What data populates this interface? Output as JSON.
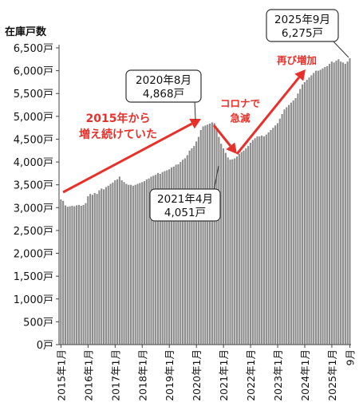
{
  "chart_data": {
    "type": "bar",
    "ylabel": "在庫戸数",
    "ylim": [
      0,
      6500
    ],
    "yticks": [
      {
        "value": 0,
        "label": "0戸"
      },
      {
        "value": 500,
        "label": "500戸"
      },
      {
        "value": 1000,
        "label": "1,000戸"
      },
      {
        "value": 1500,
        "label": "1,500戸"
      },
      {
        "value": 2000,
        "label": "2,000戸"
      },
      {
        "value": 2500,
        "label": "2,500戸"
      },
      {
        "value": 3000,
        "label": "3,000戸"
      },
      {
        "value": 3500,
        "label": "3,500戸"
      },
      {
        "value": 4000,
        "label": "4,000戸"
      },
      {
        "value": 4500,
        "label": "4,500戸"
      },
      {
        "value": 5000,
        "label": "5,000戸"
      },
      {
        "value": 5500,
        "label": "5,500戸"
      },
      {
        "value": 6000,
        "label": "6,000戸"
      },
      {
        "value": 6500,
        "label": "6,500戸"
      }
    ],
    "xticks": [
      {
        "month": "2015-01",
        "label": "2015年1月"
      },
      {
        "month": "2016-01",
        "label": "2016年1月"
      },
      {
        "month": "2017-01",
        "label": "2017年1月"
      },
      {
        "month": "2018-01",
        "label": "2018年1月"
      },
      {
        "month": "2019-01",
        "label": "2019年1月"
      },
      {
        "month": "2020-01",
        "label": "2020年1月"
      },
      {
        "month": "2021-01",
        "label": "2021年1月"
      },
      {
        "month": "2022-01",
        "label": "2022年1月"
      },
      {
        "month": "2023-01",
        "label": "2023年1月"
      },
      {
        "month": "2024-01",
        "label": "2024年1月"
      },
      {
        "month": "2025-01",
        "label": "2025年1月"
      },
      {
        "month": "2025-09",
        "label": "9月"
      }
    ],
    "start_month": "2015-01",
    "bar_color": "#8c8c8c",
    "values": [
      3180,
      3150,
      3050,
      3020,
      3030,
      3040,
      3030,
      3050,
      3060,
      3040,
      3060,
      3100,
      3250,
      3300,
      3280,
      3320,
      3300,
      3380,
      3420,
      3400,
      3450,
      3480,
      3520,
      3550,
      3600,
      3620,
      3680,
      3600,
      3560,
      3520,
      3500,
      3500,
      3480,
      3500,
      3520,
      3540,
      3560,
      3580,
      3620,
      3640,
      3680,
      3700,
      3720,
      3760,
      3740,
      3780,
      3800,
      3820,
      3840,
      3880,
      3900,
      3940,
      3950,
      4000,
      4050,
      4080,
      4150,
      4250,
      4300,
      4350,
      4450,
      4550,
      4700,
      4780,
      4800,
      4820,
      4840,
      4868,
      4850,
      4700,
      4550,
      4400,
      4300,
      4200,
      4100,
      4051,
      4060,
      4080,
      4120,
      4180,
      4220,
      4250,
      4300,
      4350,
      4420,
      4480,
      4520,
      4560,
      4560,
      4580,
      4560,
      4600,
      4650,
      4700,
      4750,
      4800,
      4850,
      4950,
      5050,
      5150,
      5200,
      5250,
      5300,
      5350,
      5400,
      5500,
      5600,
      5700,
      5750,
      5800,
      5850,
      5900,
      5950,
      6000,
      6000,
      6020,
      6050,
      6080,
      6100,
      6150,
      6200,
      6180,
      6220,
      6250,
      6200,
      6180,
      6150,
      6200,
      6275
    ],
    "annotations": [
      {
        "id": "a2020",
        "month": "2020-08",
        "line1": "2020年8月",
        "line2": "4,868戸"
      },
      {
        "id": "a2021",
        "month": "2021-04",
        "line1": "2021年4月",
        "line2": "4,051戸"
      },
      {
        "id": "a2025",
        "month": "2025-09",
        "line1": "2025年9月",
        "line2": "6,275戸"
      }
    ],
    "trend_labels": {
      "rise": [
        "2015年から",
        "増え続けていた"
      ],
      "covid": [
        "コロナで",
        "急減"
      ],
      "again": [
        "再び増加"
      ]
    },
    "arrow_color": "#e8302a"
  }
}
